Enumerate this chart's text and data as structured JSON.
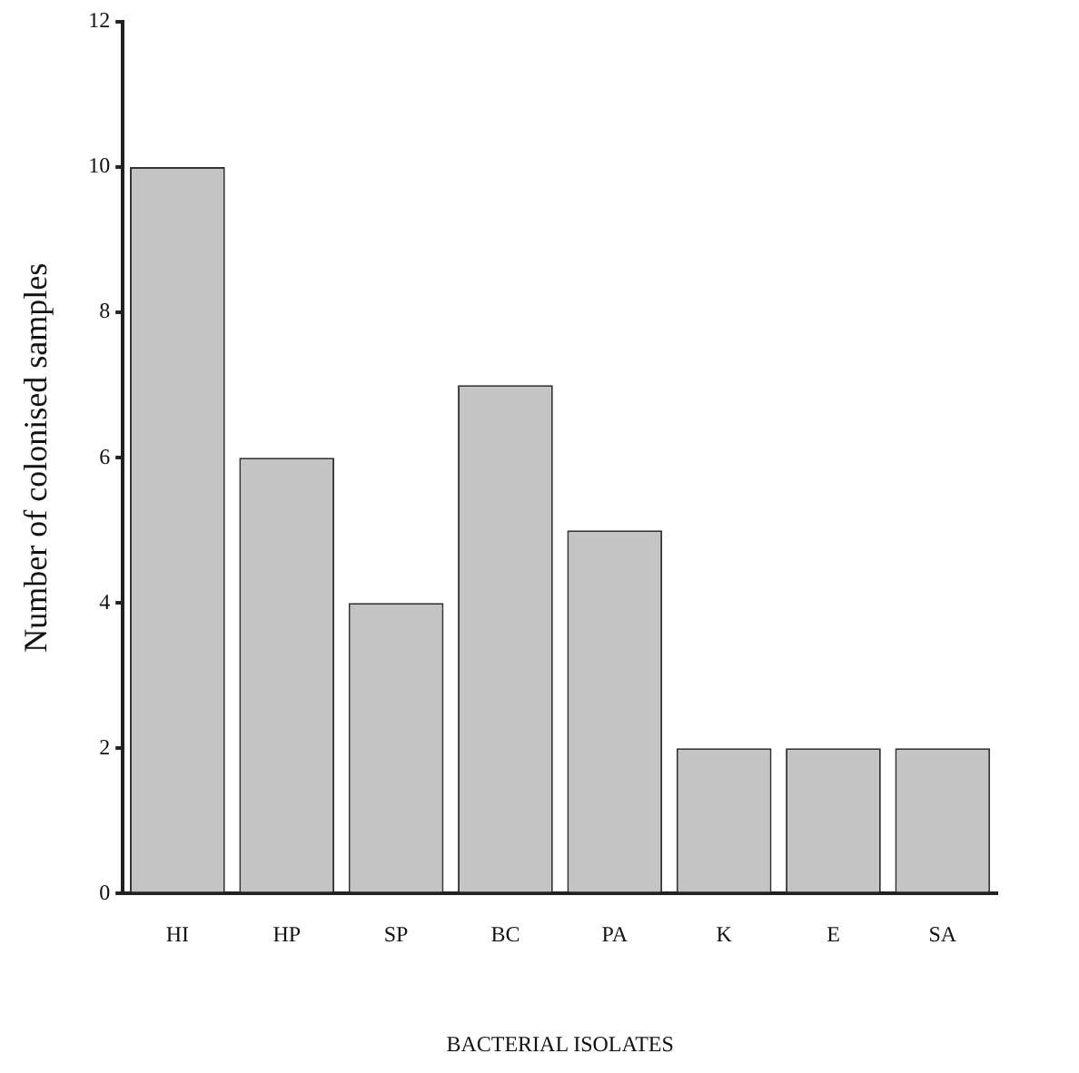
{
  "chart_data": {
    "type": "bar",
    "xlabel": "BACTERIAL ISOLATES",
    "ylabel": "Number of colonised samples",
    "categories": [
      "HI",
      "HP",
      "SP",
      "BC",
      "PA",
      "K",
      "E",
      "SA"
    ],
    "values": [
      10,
      6,
      4,
      7,
      5,
      2,
      2,
      2
    ],
    "color": "#c4c4c4",
    "ylim": [
      0,
      12
    ],
    "yticks": [
      0,
      2,
      4,
      6,
      8,
      10,
      12
    ],
    "grid": false,
    "legend": false
  }
}
